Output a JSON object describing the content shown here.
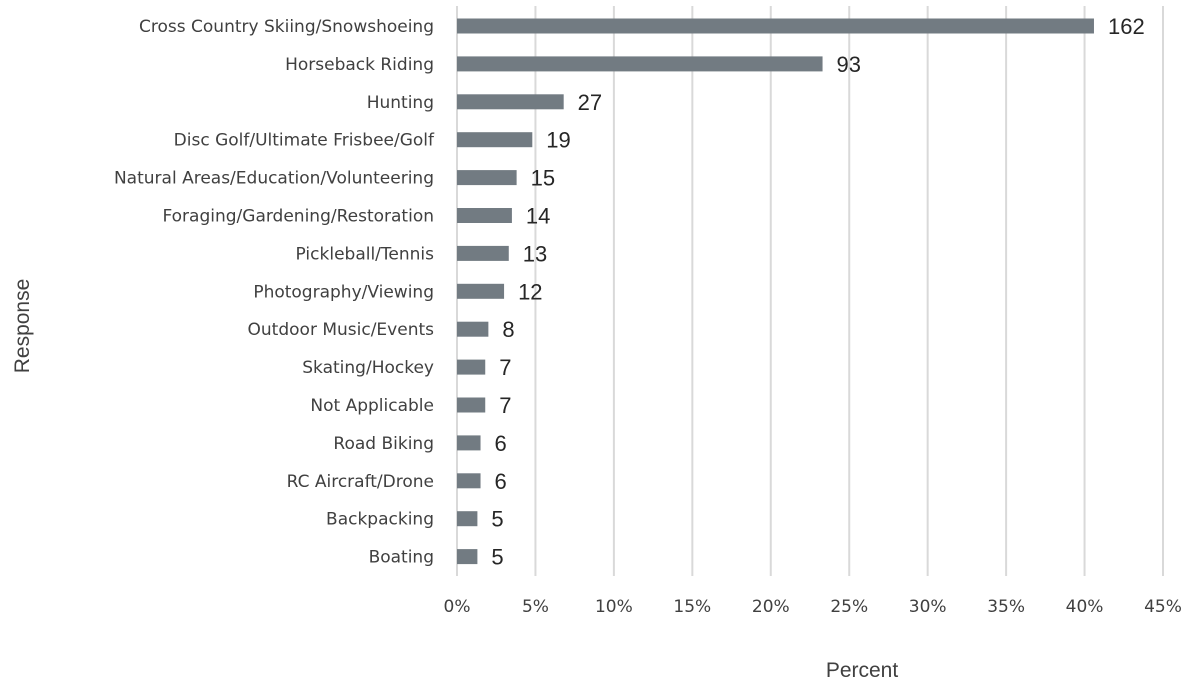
{
  "chart_data": {
    "type": "bar",
    "orientation": "horizontal",
    "categories": [
      "Cross Country Skiing/Snowshoeing",
      "Horseback Riding",
      "Hunting",
      "Disc Golf/Ultimate Frisbee/Golf",
      "Natural Areas/Education/Volunteering",
      "Foraging/Gardening/Restoration",
      "Pickleball/Tennis",
      "Photography/Viewing",
      "Outdoor Music/Events",
      "Skating/Hockey",
      "Not Applicable",
      "Road Biking",
      "RC Aircraft/Drone",
      "Backpacking",
      "Boating"
    ],
    "percent_values": [
      40.6,
      23.3,
      6.8,
      4.8,
      3.8,
      3.5,
      3.3,
      3.0,
      2.0,
      1.8,
      1.8,
      1.5,
      1.5,
      1.3,
      1.3
    ],
    "data_labels": [
      "162",
      "93",
      "27",
      "19",
      "15",
      "14",
      "13",
      "12",
      "8",
      "7",
      "7",
      "6",
      "6",
      "5",
      "5"
    ],
    "xlabel": "Percent",
    "ylabel": "Response",
    "xlim": [
      0,
      45
    ],
    "x_ticks": [
      "0%",
      "5%",
      "10%",
      "15%",
      "20%",
      "25%",
      "30%",
      "35%",
      "40%",
      "45%"
    ],
    "x_tick_values": [
      0,
      5,
      10,
      15,
      20,
      25,
      30,
      35,
      40,
      45
    ],
    "grid": "vertical",
    "legend": "none",
    "bar_color": "#727b82"
  }
}
